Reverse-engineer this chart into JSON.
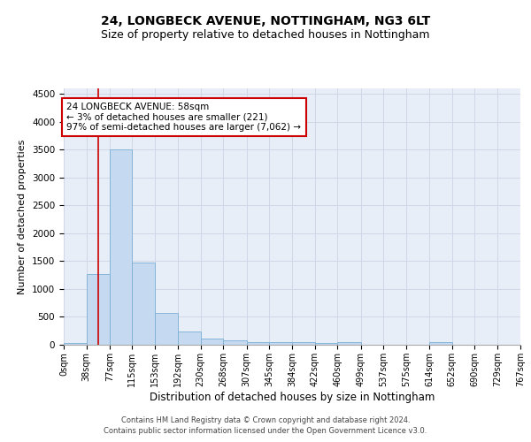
{
  "title1": "24, LONGBECK AVENUE, NOTTINGHAM, NG3 6LT",
  "title2": "Size of property relative to detached houses in Nottingham",
  "xlabel": "Distribution of detached houses by size in Nottingham",
  "ylabel": "Number of detached properties",
  "property_label": "24 LONGBECK AVENUE: 58sqm",
  "annotation_line1": "← 3% of detached houses are smaller (221)",
  "annotation_line2": "97% of semi-detached houses are larger (7,062) →",
  "footer1": "Contains HM Land Registry data © Crown copyright and database right 2024.",
  "footer2": "Contains public sector information licensed under the Open Government Licence v3.0.",
  "bin_edges": [
    0,
    38,
    77,
    115,
    153,
    192,
    230,
    268,
    307,
    345,
    384,
    422,
    460,
    499,
    537,
    575,
    614,
    652,
    690,
    729,
    767
  ],
  "bar_heights": [
    35,
    1270,
    3500,
    1480,
    575,
    240,
    115,
    80,
    55,
    45,
    50,
    35,
    45,
    0,
    0,
    0,
    50,
    0,
    0,
    0
  ],
  "bar_color": "#c5d9f0",
  "bar_edge_color": "#7bafd4",
  "vline_color": "#cc0000",
  "vline_x": 58,
  "annotation_box_color": "#cc0000",
  "background_color": "#e8eef8",
  "grid_color": "#d0d8e8",
  "ylim": [
    0,
    4600
  ],
  "yticks": [
    0,
    500,
    1000,
    1500,
    2000,
    2500,
    3000,
    3500,
    4000,
    4500
  ],
  "title1_fontsize": 10,
  "title2_fontsize": 9,
  "tick_label_fontsize": 7,
  "ylabel_fontsize": 8,
  "xlabel_fontsize": 8.5,
  "footer_fontsize": 6
}
